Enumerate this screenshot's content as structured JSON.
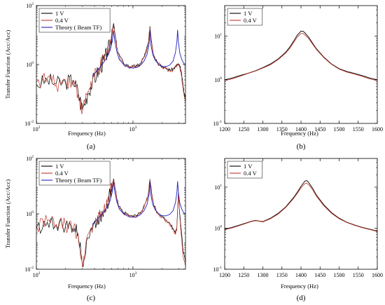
{
  "chart_data": [
    {
      "id": "a",
      "panel_label": "(a)",
      "type": "line",
      "xscale": "log",
      "yscale": "log",
      "xlabel": "Frequency (Hz)",
      "ylabel": "Transfer Function (Acc/Acc)",
      "xlim": [
        100,
        3500
      ],
      "ylim": [
        0.01,
        100
      ],
      "xticks": [
        {
          "value": 100,
          "base": "10",
          "exp": "2"
        },
        {
          "value": 1000,
          "base": "10",
          "exp": "3"
        }
      ],
      "yticks": [
        {
          "value": 0.01,
          "base": "10",
          "exp": "-2"
        },
        {
          "value": 1,
          "base": "10",
          "exp": "0"
        },
        {
          "value": 100,
          "base": "10",
          "exp": "2"
        }
      ],
      "legend": {
        "position": "top-left"
      },
      "series": [
        {
          "name": "1 V",
          "color": "#000000",
          "noisy": true,
          "x": [
            100,
            130,
            160,
            200,
            240,
            270,
            300,
            340,
            380,
            420,
            460,
            500,
            540,
            580,
            610,
            630,
            660,
            700,
            800,
            900,
            1000,
            1100,
            1200,
            1350,
            1450,
            1500,
            1560,
            1650,
            1800,
            2000,
            2200,
            2400,
            2600,
            2800,
            2950,
            3050,
            3150,
            3300,
            3400,
            3500
          ],
          "y": [
            0.2,
            0.3,
            0.22,
            0.25,
            0.3,
            0.12,
            0.03,
            0.1,
            0.25,
            0.45,
            0.8,
            1.4,
            2.5,
            5,
            12,
            25,
            8,
            2.5,
            1.1,
            0.9,
            0.85,
            0.9,
            1.1,
            2.5,
            6,
            20,
            6,
            2,
            1.2,
            0.9,
            0.75,
            0.65,
            0.7,
            0.9,
            1.0,
            0.9,
            0.6,
            0.2,
            0.1,
            0.08
          ]
        },
        {
          "name": "0.4 V",
          "color": "#c0392b",
          "noisy": true,
          "x": [
            100,
            130,
            160,
            200,
            240,
            270,
            300,
            340,
            380,
            420,
            460,
            500,
            540,
            580,
            610,
            630,
            660,
            700,
            800,
            900,
            1000,
            1100,
            1200,
            1350,
            1450,
            1500,
            1560,
            1650,
            1800,
            2000,
            2200,
            2400,
            2600,
            2800,
            2950,
            3050,
            3150,
            3300,
            3400,
            3500
          ],
          "y": [
            0.25,
            0.35,
            0.2,
            0.3,
            0.28,
            0.1,
            0.025,
            0.12,
            0.28,
            0.5,
            0.85,
            1.5,
            2.6,
            5.2,
            12,
            22,
            7.5,
            2.4,
            1.0,
            0.85,
            0.8,
            0.85,
            1.0,
            2.4,
            5.5,
            18,
            5.5,
            1.9,
            1.1,
            0.85,
            0.7,
            0.6,
            0.65,
            0.85,
            0.95,
            0.85,
            0.5,
            0.15,
            0.08,
            0.06
          ]
        },
        {
          "name": "Theory ( Beam TF)",
          "color": "#2222bb",
          "noisy": false,
          "x": [
            380,
            420,
            460,
            500,
            540,
            580,
            610,
            630,
            650,
            680,
            720,
            800,
            900,
            1000,
            1100,
            1200,
            1300,
            1400,
            1470,
            1500,
            1530,
            1600,
            1700,
            1850,
            2000,
            2200,
            2400,
            2600,
            2750,
            2850,
            2900,
            2950,
            3050,
            3200,
            3350,
            3500
          ],
          "y": [
            0.4,
            0.6,
            0.85,
            1.2,
            1.8,
            3,
            6,
            14,
            6,
            2.8,
            1.5,
            1.0,
            0.8,
            0.75,
            0.8,
            0.95,
            1.3,
            2.2,
            5,
            15,
            5,
            2.2,
            1.4,
            1.0,
            0.85,
            0.85,
            0.95,
            1.3,
            2.5,
            6,
            15,
            6,
            2.5,
            1.5,
            1.1,
            1.0
          ]
        }
      ]
    },
    {
      "id": "b",
      "panel_label": "(b)",
      "type": "line",
      "xscale": "linear",
      "yscale": "log",
      "xlabel": "Frequency (Hz)",
      "ylabel": "",
      "xlim": [
        1200,
        1600
      ],
      "ylim": [
        0.1,
        50
      ],
      "xticks": [
        {
          "value": 1200,
          "label": "1200"
        },
        {
          "value": 1250,
          "label": "1250"
        },
        {
          "value": 1300,
          "label": "1300"
        },
        {
          "value": 1350,
          "label": "1350"
        },
        {
          "value": 1400,
          "label": "1400"
        },
        {
          "value": 1450,
          "label": "1450"
        },
        {
          "value": 1500,
          "label": "1500"
        },
        {
          "value": 1550,
          "label": "1550"
        },
        {
          "value": 1600,
          "label": "1600"
        }
      ],
      "yticks": [
        {
          "value": 0.1,
          "base": "10",
          "exp": "-1"
        },
        {
          "value": 1,
          "base": "10",
          "exp": "0"
        },
        {
          "value": 10,
          "base": "10",
          "exp": "1"
        }
      ],
      "legend": {
        "position": "top-left"
      },
      "series": [
        {
          "name": "1 V",
          "color": "#000000",
          "noisy": false,
          "x": [
            1200,
            1220,
            1240,
            1260,
            1280,
            1300,
            1320,
            1340,
            1360,
            1370,
            1380,
            1390,
            1400,
            1405,
            1410,
            1420,
            1430,
            1440,
            1460,
            1480,
            1500,
            1520,
            1540,
            1560,
            1580,
            1600
          ],
          "y": [
            1.0,
            1.1,
            1.25,
            1.4,
            1.6,
            1.9,
            2.3,
            3.0,
            4.3,
            5.5,
            7.5,
            10.5,
            13,
            13,
            12,
            9.5,
            7,
            5.2,
            3.3,
            2.3,
            1.8,
            1.55,
            1.4,
            1.25,
            1.1,
            1.0
          ]
        },
        {
          "name": "0.4 V",
          "color": "#c0392b",
          "noisy": false,
          "x": [
            1200,
            1220,
            1240,
            1260,
            1280,
            1300,
            1320,
            1340,
            1360,
            1370,
            1380,
            1390,
            1400,
            1405,
            1410,
            1420,
            1430,
            1440,
            1460,
            1480,
            1500,
            1520,
            1540,
            1560,
            1580,
            1600
          ],
          "y": [
            0.95,
            1.05,
            1.2,
            1.38,
            1.58,
            1.85,
            2.2,
            2.9,
            4.1,
            5.2,
            7.0,
            9.5,
            11.5,
            11.5,
            10.8,
            8.8,
            6.6,
            5.0,
            3.2,
            2.25,
            1.75,
            1.5,
            1.35,
            1.2,
            1.05,
            0.95
          ]
        }
      ]
    },
    {
      "id": "c",
      "panel_label": "(c)",
      "type": "line",
      "xscale": "log",
      "yscale": "log",
      "xlabel": "Frequency (Hz)",
      "ylabel": "Transfer Function (Acc/Acc)",
      "xlim": [
        100,
        3500
      ],
      "ylim": [
        0.01,
        100
      ],
      "xticks": [
        {
          "value": 100,
          "base": "10",
          "exp": "2"
        },
        {
          "value": 1000,
          "base": "10",
          "exp": "3"
        }
      ],
      "yticks": [
        {
          "value": 0.01,
          "base": "10",
          "exp": "-2"
        },
        {
          "value": 1,
          "base": "10",
          "exp": "0"
        },
        {
          "value": 100,
          "base": "10",
          "exp": "2"
        }
      ],
      "legend": {
        "position": "top-left"
      },
      "series": [
        {
          "name": "1 V",
          "color": "#000000",
          "noisy": true,
          "x": [
            100,
            130,
            160,
            200,
            240,
            270,
            300,
            330,
            370,
            420,
            460,
            500,
            540,
            580,
            610,
            630,
            660,
            700,
            800,
            900,
            1000,
            1100,
            1200,
            1350,
            1450,
            1500,
            1560,
            1650,
            1800,
            2000,
            2200,
            2400,
            2600,
            2750,
            2850,
            2950,
            3050,
            3150,
            3300,
            3500
          ],
          "y": [
            0.3,
            0.5,
            0.4,
            0.35,
            0.3,
            0.2,
            0.015,
            0.1,
            0.3,
            0.5,
            0.85,
            1.4,
            2.5,
            5,
            10,
            18,
            7,
            2.3,
            1.1,
            0.9,
            0.85,
            0.9,
            1.1,
            2.5,
            6,
            18,
            6,
            2,
            1.1,
            0.8,
            0.6,
            0.45,
            0.3,
            0.2,
            0.35,
            6,
            1.0,
            0.3,
            0.05,
            0.02
          ]
        },
        {
          "name": "0.4 V",
          "color": "#c0392b",
          "noisy": true,
          "x": [
            100,
            130,
            160,
            200,
            240,
            270,
            300,
            330,
            370,
            420,
            460,
            500,
            540,
            580,
            610,
            630,
            660,
            700,
            800,
            900,
            1000,
            1100,
            1200,
            1350,
            1450,
            1500,
            1560,
            1650,
            1800,
            2000,
            2200,
            2400,
            2600,
            2750,
            2850,
            2950,
            3050,
            3150,
            3300,
            3500
          ],
          "y": [
            0.35,
            0.55,
            0.42,
            0.38,
            0.32,
            0.18,
            0.012,
            0.12,
            0.32,
            0.55,
            0.9,
            1.5,
            2.6,
            5.2,
            10,
            17,
            6.8,
            2.2,
            1.0,
            0.85,
            0.8,
            0.85,
            1.0,
            2.4,
            5.5,
            17,
            5.5,
            1.9,
            1.0,
            0.75,
            0.55,
            0.4,
            0.28,
            0.18,
            0.3,
            5,
            0.8,
            0.2,
            0.03,
            0.015
          ]
        },
        {
          "name": "Theory ( Beam TF)",
          "color": "#2222bb",
          "noisy": false,
          "x": [
            380,
            420,
            460,
            500,
            540,
            580,
            610,
            630,
            650,
            680,
            720,
            800,
            900,
            1000,
            1100,
            1200,
            1300,
            1400,
            1470,
            1500,
            1530,
            1600,
            1700,
            1850,
            2000,
            2200,
            2400,
            2600,
            2750,
            2850,
            2900,
            2950,
            3050,
            3200,
            3350,
            3500
          ],
          "y": [
            0.4,
            0.6,
            0.85,
            1.2,
            1.8,
            3,
            6,
            14,
            6,
            2.8,
            1.5,
            1.0,
            0.8,
            0.75,
            0.8,
            0.95,
            1.3,
            2.2,
            5,
            15,
            5,
            2.2,
            1.4,
            1.0,
            0.85,
            0.85,
            0.95,
            1.3,
            2.5,
            6,
            15,
            6,
            2.5,
            1.5,
            1.1,
            1.0
          ]
        }
      ]
    },
    {
      "id": "d",
      "panel_label": "(d)",
      "type": "line",
      "xscale": "linear",
      "yscale": "log",
      "xlabel": "Frequency (Hz)",
      "ylabel": "",
      "xlim": [
        1200,
        1600
      ],
      "ylim": [
        0.1,
        50
      ],
      "xticks": [
        {
          "value": 1200,
          "label": "1200"
        },
        {
          "value": 1250,
          "label": "1250"
        },
        {
          "value": 1300,
          "label": "1300"
        },
        {
          "value": 1350,
          "label": "1350"
        },
        {
          "value": 1400,
          "label": "1400"
        },
        {
          "value": 1450,
          "label": "1450"
        },
        {
          "value": 1500,
          "label": "1500"
        },
        {
          "value": 1550,
          "label": "1550"
        },
        {
          "value": 1600,
          "label": "1600"
        }
      ],
      "yticks": [
        {
          "value": 0.1,
          "base": "10",
          "exp": "-1"
        },
        {
          "value": 1,
          "base": "10",
          "exp": "0"
        },
        {
          "value": 10,
          "base": "10",
          "exp": "1"
        }
      ],
      "legend": {
        "position": "top-left"
      },
      "series": [
        {
          "name": "1 V",
          "color": "#000000",
          "noisy": false,
          "x": [
            1200,
            1220,
            1240,
            1260,
            1270,
            1280,
            1290,
            1300,
            1320,
            1340,
            1360,
            1380,
            1390,
            1400,
            1410,
            1415,
            1420,
            1430,
            1440,
            1460,
            1480,
            1500,
            1520,
            1540,
            1560,
            1580,
            1600
          ],
          "y": [
            0.95,
            1.05,
            1.2,
            1.38,
            1.48,
            1.55,
            1.5,
            1.45,
            1.75,
            2.3,
            3.3,
            5.5,
            7.5,
            10.5,
            14,
            14.5,
            13,
            9.5,
            6.5,
            3.7,
            2.4,
            1.75,
            1.4,
            1.2,
            1.05,
            0.95,
            0.85
          ]
        },
        {
          "name": "0.4 V",
          "color": "#c0392b",
          "noisy": false,
          "x": [
            1200,
            1220,
            1240,
            1260,
            1270,
            1280,
            1290,
            1300,
            1320,
            1340,
            1360,
            1380,
            1390,
            1400,
            1410,
            1415,
            1420,
            1430,
            1440,
            1460,
            1480,
            1500,
            1520,
            1540,
            1560,
            1580,
            1600
          ],
          "y": [
            0.92,
            1.02,
            1.17,
            1.35,
            1.45,
            1.52,
            1.48,
            1.42,
            1.7,
            2.2,
            3.2,
            5.2,
            7.0,
            9.6,
            12.2,
            12.5,
            11.5,
            8.8,
            6.1,
            3.5,
            2.3,
            1.7,
            1.38,
            1.18,
            1.03,
            0.93,
            0.83
          ]
        }
      ]
    }
  ]
}
